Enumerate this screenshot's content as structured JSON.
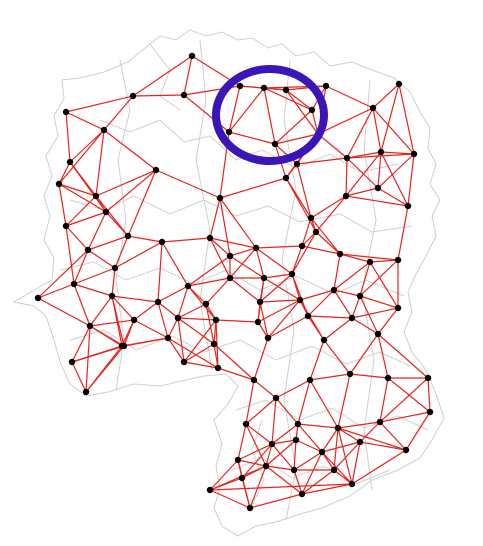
{
  "map": {
    "colors": {
      "background": "#ffffff",
      "boundary_stroke": "#cfcfcf",
      "edge_stroke": "#e8231c",
      "node_fill": "#000000",
      "highlight_stroke": "#3a16b8"
    },
    "network": {
      "description_hidden": true,
      "nodes": [
        {
          "id": "n1"
        },
        {
          "id": "n2"
        },
        {
          "id": "n3"
        },
        {
          "id": "n4"
        },
        {
          "id": "n5"
        },
        {
          "id": "n6"
        },
        {
          "id": "n7"
        },
        {
          "id": "n8"
        },
        {
          "id": "n9"
        },
        {
          "id": "n10"
        },
        {
          "id": "n11"
        },
        {
          "id": "n12"
        },
        {
          "id": "n13"
        },
        {
          "id": "n14"
        },
        {
          "id": "n15"
        },
        {
          "id": "n16"
        },
        {
          "id": "n17"
        },
        {
          "id": "n18"
        },
        {
          "id": "n19"
        },
        {
          "id": "n20"
        },
        {
          "id": "n21"
        },
        {
          "id": "n22"
        },
        {
          "id": "n23"
        },
        {
          "id": "n24"
        },
        {
          "id": "n25"
        },
        {
          "id": "n26"
        },
        {
          "id": "n27"
        },
        {
          "id": "n28"
        },
        {
          "id": "n29"
        },
        {
          "id": "n30"
        },
        {
          "id": "n31"
        },
        {
          "id": "n32"
        },
        {
          "id": "n33"
        },
        {
          "id": "n34"
        },
        {
          "id": "n35"
        },
        {
          "id": "n36"
        },
        {
          "id": "n37"
        },
        {
          "id": "n38"
        },
        {
          "id": "n39"
        },
        {
          "id": "n40"
        },
        {
          "id": "n41"
        },
        {
          "id": "n42"
        },
        {
          "id": "n43"
        },
        {
          "id": "n44"
        },
        {
          "id": "n45"
        },
        {
          "id": "n46"
        },
        {
          "id": "n47"
        },
        {
          "id": "n48"
        },
        {
          "id": "n49"
        },
        {
          "id": "n50"
        },
        {
          "id": "n51"
        },
        {
          "id": "n52"
        },
        {
          "id": "n53"
        },
        {
          "id": "n54"
        },
        {
          "id": "n55"
        },
        {
          "id": "n56"
        },
        {
          "id": "n57"
        },
        {
          "id": "n58"
        },
        {
          "id": "n59"
        },
        {
          "id": "n60"
        },
        {
          "id": "n61"
        },
        {
          "id": "n62"
        },
        {
          "id": "n63"
        },
        {
          "id": "n64"
        },
        {
          "id": "n65"
        },
        {
          "id": "n66"
        },
        {
          "id": "n67"
        },
        {
          "id": "n68"
        },
        {
          "id": "n69"
        },
        {
          "id": "n70"
        },
        {
          "id": "n71"
        },
        {
          "id": "n72"
        },
        {
          "id": "n73"
        },
        {
          "id": "n74"
        },
        {
          "id": "n75"
        },
        {
          "id": "n76"
        },
        {
          "id": "n77"
        },
        {
          "id": "n78"
        },
        {
          "id": "n79"
        },
        {
          "id": "n80"
        },
        {
          "id": "n81"
        },
        {
          "id": "n82"
        },
        {
          "id": "n83"
        },
        {
          "id": "n84"
        },
        {
          "id": "n85"
        },
        {
          "id": "n86"
        },
        {
          "id": "n87"
        },
        {
          "id": "n88"
        },
        {
          "id": "n89"
        },
        {
          "id": "n90"
        },
        {
          "id": "n91"
        },
        {
          "id": "n92"
        },
        {
          "id": "n93"
        },
        {
          "id": "n94"
        },
        {
          "id": "n95"
        },
        {
          "id": "n96"
        },
        {
          "id": "n97"
        },
        {
          "id": "n98"
        },
        {
          "id": "n99"
        },
        {
          "id": "n100"
        },
        {
          "id": "n101"
        },
        {
          "id": "n102"
        },
        {
          "id": "n103"
        },
        {
          "id": "n104"
        },
        {
          "id": "n105"
        },
        {
          "id": "n106"
        },
        {
          "id": "n107"
        },
        {
          "id": "n108"
        },
        {
          "id": "n109"
        },
        {
          "id": "n110"
        },
        {
          "id": "n111"
        },
        {
          "id": "n112"
        },
        {
          "id": "n113"
        },
        {
          "id": "n114"
        },
        {
          "id": "n115"
        },
        {
          "id": "n116"
        },
        {
          "id": "n117"
        },
        {
          "id": "n118"
        },
        {
          "id": "n119"
        },
        {
          "id": "n120"
        },
        {
          "id": "n121"
        },
        {
          "id": "n122"
        },
        {
          "id": "n123"
        },
        {
          "id": "n124"
        },
        {
          "id": "n125"
        },
        {
          "id": "n126"
        },
        {
          "id": "n127"
        },
        {
          "id": "n128"
        },
        {
          "id": "n129"
        },
        {
          "id": "n130"
        },
        {
          "id": "n131"
        },
        {
          "id": "n132"
        },
        {
          "id": "n133"
        },
        {
          "id": "n134"
        }
      ]
    },
    "highlight": {
      "shape": "ellipse",
      "color_key": "highlight_stroke"
    }
  }
}
